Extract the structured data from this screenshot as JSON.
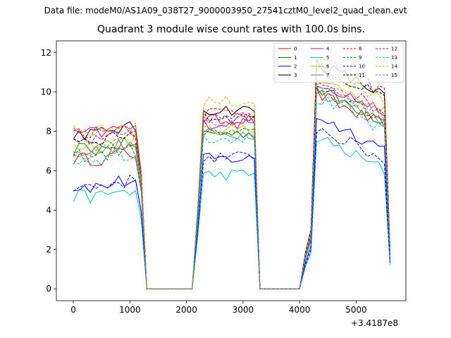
{
  "figure": {
    "suptitle": "Data file: modeM0/AS1A09_038T27_9000003950_27541cztM0_level2_quad_clean.evt",
    "title": "Quadrant 3 module wise count rates with 100.0s bins.",
    "x_offset_label": "+3.4187e8"
  },
  "chart_data": {
    "type": "line",
    "title": "Quadrant 3 module wise count rates with 100.0s bins.",
    "xlabel": "",
    "ylabel": "",
    "xlim": [
      -300,
      5880
    ],
    "ylim": [
      -0.6,
      12.6
    ],
    "x_offset": "+3.4187e8",
    "xticks": [
      0,
      1000,
      2000,
      3000,
      4000,
      5000
    ],
    "yticks": [
      0,
      2,
      4,
      6,
      8,
      10,
      12
    ],
    "grid": false,
    "legend_position": "top-right",
    "legend_columns": 4,
    "segments": [
      {
        "x_start": 0,
        "x_end": 1200,
        "step": 100
      },
      {
        "x_start": 2200,
        "x_end": 3200,
        "step": 100
      },
      {
        "x_start": 4100,
        "x_end": 5600,
        "step": 100
      }
    ],
    "zero_x": [
      1300,
      1400,
      1500,
      1600,
      1700,
      1800,
      1900,
      2000,
      2100,
      2200,
      3300,
      3400,
      3500,
      3600,
      3700,
      3800,
      3900,
      4000,
      4100
    ],
    "series": [
      {
        "name": "0",
        "color": "#ff0000",
        "dash": "solid",
        "levels": [
          6.6,
          8.6,
          8.3
        ]
      },
      {
        "name": "1",
        "color": "#008000",
        "dash": "solid",
        "levels": [
          7.1,
          7.9,
          8.6
        ]
      },
      {
        "name": "2",
        "color": "#0000ff",
        "dash": "solid",
        "levels": [
          5.2,
          6.6,
          7.2
        ]
      },
      {
        "name": "3",
        "color": "#000000",
        "dash": "solid",
        "levels": [
          7.9,
          9.1,
          9.9
        ]
      },
      {
        "name": "4",
        "color": "#bf00bf",
        "dash": "solid",
        "levels": [
          7.9,
          8.4,
          9.0
        ]
      },
      {
        "name": "5",
        "color": "#00bfbf",
        "dash": "solid",
        "levels": [
          4.7,
          5.8,
          6.1
        ]
      },
      {
        "name": "6",
        "color": "#bfbf00",
        "dash": "solid",
        "levels": [
          7.3,
          8.1,
          9.1
        ]
      },
      {
        "name": "7",
        "color": "#808080",
        "dash": "solid",
        "levels": [
          7.0,
          7.9,
          8.5
        ]
      },
      {
        "name": "8",
        "color": "#ff0000",
        "dash": "dashed",
        "levels": [
          8.0,
          9.0,
          10.1
        ]
      },
      {
        "name": "9",
        "color": "#008000",
        "dash": "dashed",
        "levels": [
          6.8,
          7.9,
          8.6
        ]
      },
      {
        "name": "10",
        "color": "#0000ff",
        "dash": "dashed",
        "levels": [
          5.2,
          6.7,
          6.6
        ]
      },
      {
        "name": "11",
        "color": "#000000",
        "dash": "dashed",
        "levels": [
          7.6,
          8.7,
          9.7
        ]
      },
      {
        "name": "12",
        "color": "#bf00bf",
        "dash": "dashed",
        "levels": [
          7.5,
          8.7,
          9.1
        ]
      },
      {
        "name": "13",
        "color": "#00bfbf",
        "dash": "dashed",
        "levels": [
          6.6,
          7.7,
          8.1
        ]
      },
      {
        "name": "14",
        "color": "#bfbf00",
        "dash": "dashed",
        "levels": [
          8.0,
          9.5,
          9.6
        ]
      },
      {
        "name": "15",
        "color": "#808080",
        "dash": "dashed",
        "levels": [
          7.1,
          8.5,
          8.8
        ]
      }
    ]
  }
}
